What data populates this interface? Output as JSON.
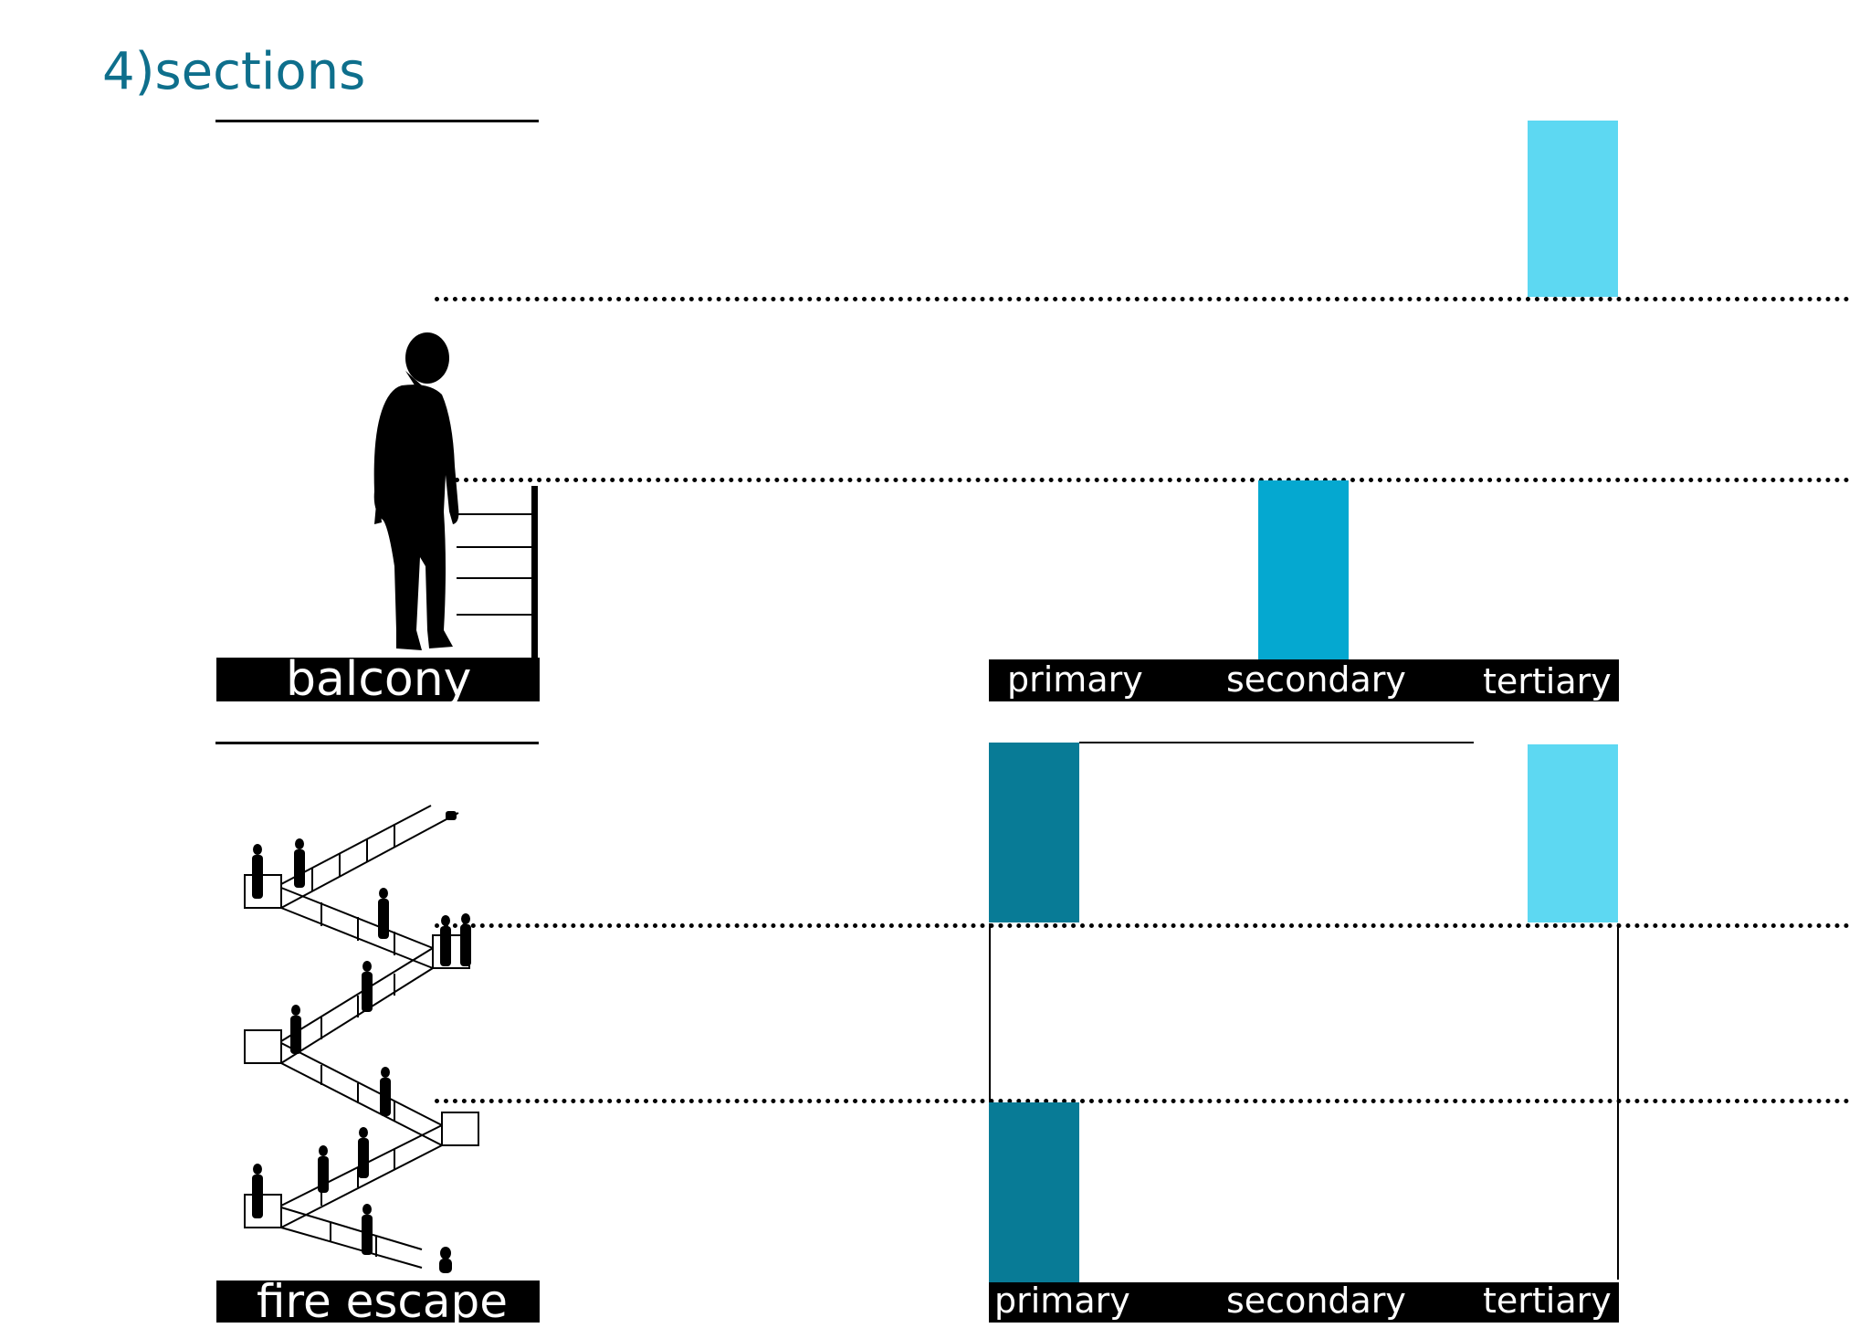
{
  "title": "4)sections",
  "balcony": {
    "label": "balcony",
    "levels": [
      "primary",
      "secondary",
      "tertiary"
    ]
  },
  "fire_escape": {
    "label": "fire escape",
    "levels": [
      "primary",
      "secondary",
      "tertiary"
    ]
  },
  "colors": {
    "heading": "#0e6f8c",
    "primary": "#087b96",
    "secondary": "#05a8d0",
    "tertiary": "#5dd8f2",
    "ink": "#000000"
  }
}
